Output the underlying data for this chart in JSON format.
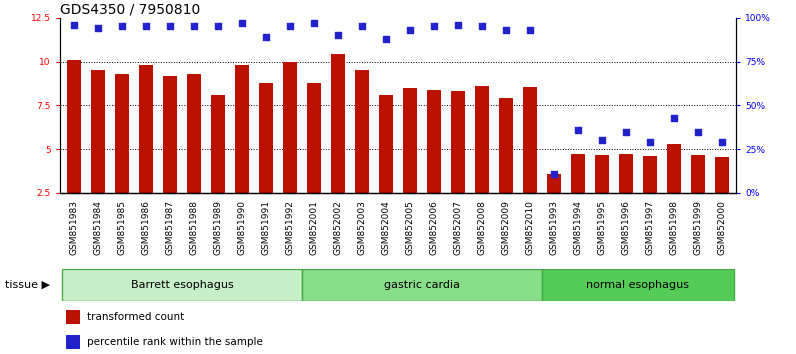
{
  "title": "GDS4350 / 7950810",
  "samples": [
    "GSM851983",
    "GSM851984",
    "GSM851985",
    "GSM851986",
    "GSM851987",
    "GSM851988",
    "GSM851989",
    "GSM851990",
    "GSM851991",
    "GSM851992",
    "GSM852001",
    "GSM852002",
    "GSM852003",
    "GSM852004",
    "GSM852005",
    "GSM852006",
    "GSM852007",
    "GSM852008",
    "GSM852009",
    "GSM852010",
    "GSM851993",
    "GSM851994",
    "GSM851995",
    "GSM851996",
    "GSM851997",
    "GSM851998",
    "GSM851999",
    "GSM852000"
  ],
  "bar_values": [
    10.1,
    9.5,
    9.3,
    9.8,
    9.2,
    9.3,
    8.1,
    9.8,
    8.8,
    9.95,
    8.8,
    10.4,
    9.5,
    8.1,
    8.5,
    8.35,
    8.3,
    8.6,
    7.9,
    8.55,
    3.6,
    4.7,
    4.65,
    4.7,
    4.6,
    5.3,
    4.65,
    4.55
  ],
  "blue_values": [
    96,
    94,
    95,
    95,
    95,
    95,
    95,
    97,
    89,
    95,
    97,
    90,
    95,
    88,
    93,
    95,
    96,
    95,
    93,
    93,
    11,
    36,
    30,
    35,
    29,
    43,
    35,
    29
  ],
  "groups": [
    {
      "label": "Barrett esophagus",
      "start": 0,
      "end": 9,
      "color": "#c8f0c8",
      "border": "#44aa44"
    },
    {
      "label": "gastric cardia",
      "start": 10,
      "end": 19,
      "color": "#88dd88",
      "border": "#44aa44"
    },
    {
      "label": "normal esophagus",
      "start": 20,
      "end": 27,
      "color": "#55cc55",
      "border": "#44aa44"
    }
  ],
  "ylim_left": [
    2.5,
    12.5
  ],
  "ylim_right": [
    0,
    100
  ],
  "yticks_left": [
    2.5,
    5.0,
    7.5,
    10.0,
    12.5
  ],
  "ytick_labels_left": [
    "2.5",
    "5",
    "7.5",
    "10",
    "12.5"
  ],
  "yticks_right": [
    0,
    25,
    50,
    75,
    100
  ],
  "ytick_labels_right": [
    "0%",
    "25%",
    "50%",
    "75%",
    "100%"
  ],
  "hlines": [
    5.0,
    7.5,
    10.0
  ],
  "bar_color": "#bb1100",
  "dot_color": "#2222cc",
  "bar_width": 0.55,
  "title_fontsize": 10,
  "tick_fontsize": 6.5,
  "label_fontsize": 7.5,
  "legend_fontsize": 7.5,
  "group_label_fontsize": 8,
  "tissue_fontsize": 8,
  "xticklabel_bg": "#d8d8d8"
}
